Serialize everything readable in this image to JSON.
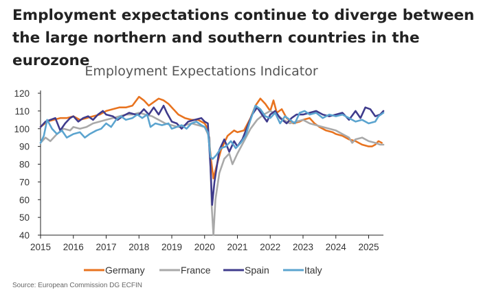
{
  "headline": "Employment expectations continue to diverge between the large northern and southern countries in the eurozone",
  "source": "Source: European Commission DG ECFIN",
  "chart_data": {
    "type": "line",
    "title": "Employment Expectations Indicator",
    "xlabel": "",
    "ylabel": "",
    "xlim": [
      2015.0,
      2025.45
    ],
    "ylim": [
      40,
      120
    ],
    "yticks": [
      40,
      50,
      60,
      70,
      80,
      90,
      100,
      110,
      120
    ],
    "xticks": [
      "2015",
      "2016",
      "2017",
      "2018",
      "2019",
      "2020",
      "2021",
      "2022",
      "2023",
      "2024",
      "2025"
    ],
    "grid": false,
    "legend": "bottom",
    "series": [
      {
        "name": "Germany",
        "color": "#E8731F",
        "points": [
          [
            2015.0,
            101
          ],
          [
            2015.2,
            104
          ],
          [
            2015.4,
            105
          ],
          [
            2015.6,
            106
          ],
          [
            2015.8,
            106
          ],
          [
            2016.0,
            107
          ],
          [
            2016.2,
            105
          ],
          [
            2016.4,
            106
          ],
          [
            2016.6,
            107
          ],
          [
            2016.8,
            108
          ],
          [
            2017.0,
            110
          ],
          [
            2017.2,
            111
          ],
          [
            2017.4,
            112
          ],
          [
            2017.6,
            112
          ],
          [
            2017.8,
            113
          ],
          [
            2018.0,
            118
          ],
          [
            2018.15,
            116
          ],
          [
            2018.3,
            113
          ],
          [
            2018.45,
            115
          ],
          [
            2018.6,
            117
          ],
          [
            2018.75,
            116
          ],
          [
            2018.9,
            114
          ],
          [
            2019.0,
            112
          ],
          [
            2019.2,
            108
          ],
          [
            2019.4,
            106
          ],
          [
            2019.6,
            105
          ],
          [
            2019.8,
            105
          ],
          [
            2020.0,
            103
          ],
          [
            2020.1,
            100
          ],
          [
            2020.2,
            82
          ],
          [
            2020.27,
            72
          ],
          [
            2020.35,
            78
          ],
          [
            2020.5,
            88
          ],
          [
            2020.7,
            96
          ],
          [
            2020.9,
            99
          ],
          [
            2021.0,
            98
          ],
          [
            2021.2,
            99
          ],
          [
            2021.4,
            106
          ],
          [
            2021.55,
            113
          ],
          [
            2021.7,
            117
          ],
          [
            2021.85,
            114
          ],
          [
            2022.0,
            110
          ],
          [
            2022.1,
            116
          ],
          [
            2022.2,
            109
          ],
          [
            2022.35,
            111
          ],
          [
            2022.5,
            106
          ],
          [
            2022.7,
            103
          ],
          [
            2022.9,
            104
          ],
          [
            2023.0,
            105
          ],
          [
            2023.2,
            106
          ],
          [
            2023.35,
            103
          ],
          [
            2023.5,
            101
          ],
          [
            2023.7,
            99
          ],
          [
            2023.9,
            98
          ],
          [
            2024.0,
            97
          ],
          [
            2024.2,
            96
          ],
          [
            2024.4,
            94
          ],
          [
            2024.6,
            93
          ],
          [
            2024.8,
            91
          ],
          [
            2025.0,
            90
          ],
          [
            2025.1,
            90
          ],
          [
            2025.2,
            91
          ],
          [
            2025.3,
            93
          ],
          [
            2025.4,
            92
          ]
        ]
      },
      {
        "name": "France",
        "color": "#A9A9A9",
        "points": [
          [
            2015.0,
            92
          ],
          [
            2015.15,
            95
          ],
          [
            2015.3,
            93
          ],
          [
            2015.5,
            97
          ],
          [
            2015.7,
            100
          ],
          [
            2015.9,
            99
          ],
          [
            2016.0,
            101
          ],
          [
            2016.2,
            100
          ],
          [
            2016.4,
            101
          ],
          [
            2016.6,
            103
          ],
          [
            2016.8,
            104
          ],
          [
            2017.0,
            105
          ],
          [
            2017.2,
            106
          ],
          [
            2017.4,
            107
          ],
          [
            2017.6,
            108
          ],
          [
            2017.8,
            108
          ],
          [
            2018.0,
            109
          ],
          [
            2018.2,
            108
          ],
          [
            2018.4,
            107
          ],
          [
            2018.6,
            105
          ],
          [
            2018.8,
            103
          ],
          [
            2019.0,
            102
          ],
          [
            2019.2,
            101
          ],
          [
            2019.4,
            102
          ],
          [
            2019.6,
            103
          ],
          [
            2019.8,
            102
          ],
          [
            2020.0,
            101
          ],
          [
            2020.15,
            95
          ],
          [
            2020.22,
            55
          ],
          [
            2020.27,
            40
          ],
          [
            2020.33,
            60
          ],
          [
            2020.45,
            75
          ],
          [
            2020.6,
            83
          ],
          [
            2020.75,
            86
          ],
          [
            2020.85,
            80
          ],
          [
            2021.0,
            86
          ],
          [
            2021.2,
            93
          ],
          [
            2021.4,
            100
          ],
          [
            2021.6,
            105
          ],
          [
            2021.8,
            108
          ],
          [
            2022.0,
            110
          ],
          [
            2022.2,
            108
          ],
          [
            2022.4,
            105
          ],
          [
            2022.6,
            103
          ],
          [
            2022.8,
            104
          ],
          [
            2023.0,
            105
          ],
          [
            2023.2,
            103
          ],
          [
            2023.4,
            102
          ],
          [
            2023.6,
            101
          ],
          [
            2023.8,
            100
          ],
          [
            2024.0,
            99
          ],
          [
            2024.2,
            97
          ],
          [
            2024.4,
            95
          ],
          [
            2024.5,
            92
          ],
          [
            2024.6,
            94
          ],
          [
            2024.8,
            95
          ],
          [
            2025.0,
            93
          ],
          [
            2025.2,
            92
          ],
          [
            2025.35,
            91
          ],
          [
            2025.45,
            91
          ]
        ]
      },
      {
        "name": "Spain",
        "color": "#3F3B8C",
        "points": [
          [
            2015.0,
            101
          ],
          [
            2015.15,
            104
          ],
          [
            2015.3,
            105
          ],
          [
            2015.45,
            106
          ],
          [
            2015.6,
            99
          ],
          [
            2015.75,
            103
          ],
          [
            2015.9,
            106
          ],
          [
            2016.0,
            107
          ],
          [
            2016.15,
            104
          ],
          [
            2016.3,
            106
          ],
          [
            2016.45,
            107
          ],
          [
            2016.6,
            105
          ],
          [
            2016.75,
            108
          ],
          [
            2016.9,
            110
          ],
          [
            2017.0,
            108
          ],
          [
            2017.2,
            107
          ],
          [
            2017.35,
            105
          ],
          [
            2017.5,
            107
          ],
          [
            2017.7,
            109
          ],
          [
            2017.9,
            108
          ],
          [
            2018.0,
            108
          ],
          [
            2018.15,
            111
          ],
          [
            2018.3,
            108
          ],
          [
            2018.45,
            112
          ],
          [
            2018.6,
            108
          ],
          [
            2018.75,
            113
          ],
          [
            2018.85,
            109
          ],
          [
            2019.0,
            104
          ],
          [
            2019.15,
            103
          ],
          [
            2019.3,
            100
          ],
          [
            2019.5,
            104
          ],
          [
            2019.7,
            105
          ],
          [
            2019.9,
            106
          ],
          [
            2020.0,
            104
          ],
          [
            2020.1,
            103
          ],
          [
            2020.18,
            78
          ],
          [
            2020.23,
            57
          ],
          [
            2020.3,
            70
          ],
          [
            2020.45,
            88
          ],
          [
            2020.6,
            94
          ],
          [
            2020.75,
            87
          ],
          [
            2020.9,
            93
          ],
          [
            2021.0,
            90
          ],
          [
            2021.15,
            94
          ],
          [
            2021.3,
            101
          ],
          [
            2021.45,
            108
          ],
          [
            2021.6,
            112
          ],
          [
            2021.75,
            108
          ],
          [
            2021.9,
            104
          ],
          [
            2022.0,
            108
          ],
          [
            2022.15,
            110
          ],
          [
            2022.3,
            106
          ],
          [
            2022.5,
            103
          ],
          [
            2022.65,
            106
          ],
          [
            2022.8,
            108
          ],
          [
            2023.0,
            108
          ],
          [
            2023.2,
            109
          ],
          [
            2023.4,
            110
          ],
          [
            2023.6,
            108
          ],
          [
            2023.8,
            107
          ],
          [
            2024.0,
            108
          ],
          [
            2024.2,
            109
          ],
          [
            2024.4,
            105
          ],
          [
            2024.6,
            110
          ],
          [
            2024.75,
            106
          ],
          [
            2024.9,
            112
          ],
          [
            2025.05,
            111
          ],
          [
            2025.2,
            107
          ],
          [
            2025.35,
            108
          ],
          [
            2025.45,
            110
          ]
        ]
      },
      {
        "name": "Italy",
        "color": "#5BA4CF",
        "points": [
          [
            2015.0,
            92
          ],
          [
            2015.1,
            96
          ],
          [
            2015.2,
            105
          ],
          [
            2015.35,
            100
          ],
          [
            2015.5,
            97
          ],
          [
            2015.65,
            99
          ],
          [
            2015.8,
            95
          ],
          [
            2016.0,
            97
          ],
          [
            2016.2,
            98
          ],
          [
            2016.35,
            95
          ],
          [
            2016.5,
            97
          ],
          [
            2016.7,
            99
          ],
          [
            2016.85,
            100
          ],
          [
            2017.0,
            103
          ],
          [
            2017.15,
            101
          ],
          [
            2017.3,
            105
          ],
          [
            2017.45,
            107
          ],
          [
            2017.6,
            105
          ],
          [
            2017.8,
            106
          ],
          [
            2017.95,
            108
          ],
          [
            2018.1,
            106
          ],
          [
            2018.25,
            108
          ],
          [
            2018.35,
            101
          ],
          [
            2018.5,
            103
          ],
          [
            2018.7,
            102
          ],
          [
            2018.9,
            103
          ],
          [
            2019.0,
            100
          ],
          [
            2019.15,
            101
          ],
          [
            2019.3,
            102
          ],
          [
            2019.45,
            100
          ],
          [
            2019.6,
            103
          ],
          [
            2019.75,
            104
          ],
          [
            2019.9,
            102
          ],
          [
            2020.0,
            101
          ],
          [
            2020.1,
            98
          ],
          [
            2020.18,
            84
          ],
          [
            2020.25,
            83
          ],
          [
            2020.35,
            85
          ],
          [
            2020.5,
            89
          ],
          [
            2020.65,
            90
          ],
          [
            2020.8,
            93
          ],
          [
            2020.95,
            89
          ],
          [
            2021.1,
            92
          ],
          [
            2021.25,
            96
          ],
          [
            2021.4,
            105
          ],
          [
            2021.55,
            113
          ],
          [
            2021.7,
            111
          ],
          [
            2021.85,
            107
          ],
          [
            2022.0,
            106
          ],
          [
            2022.15,
            109
          ],
          [
            2022.3,
            103
          ],
          [
            2022.45,
            107
          ],
          [
            2022.6,
            105
          ],
          [
            2022.75,
            103
          ],
          [
            2022.9,
            109
          ],
          [
            2023.05,
            110
          ],
          [
            2023.2,
            108
          ],
          [
            2023.4,
            109
          ],
          [
            2023.6,
            106
          ],
          [
            2023.8,
            108
          ],
          [
            2024.0,
            107
          ],
          [
            2024.2,
            108
          ],
          [
            2024.4,
            106
          ],
          [
            2024.6,
            104
          ],
          [
            2024.8,
            105
          ],
          [
            2025.0,
            103
          ],
          [
            2025.2,
            104
          ],
          [
            2025.3,
            107
          ],
          [
            2025.45,
            109
          ]
        ]
      }
    ]
  }
}
